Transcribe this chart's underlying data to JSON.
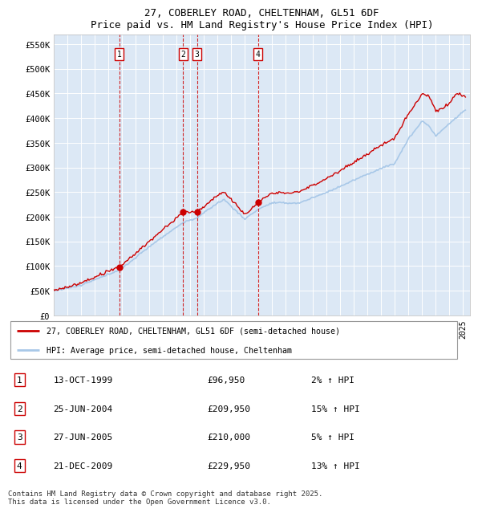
{
  "title_line1": "27, COBERLEY ROAD, CHELTENHAM, GL51 6DF",
  "title_line2": "Price paid vs. HM Land Registry's House Price Index (HPI)",
  "ylabel_ticks": [
    "£0",
    "£50K",
    "£100K",
    "£150K",
    "£200K",
    "£250K",
    "£300K",
    "£350K",
    "£400K",
    "£450K",
    "£500K",
    "£550K"
  ],
  "ytick_values": [
    0,
    50000,
    100000,
    150000,
    200000,
    250000,
    300000,
    350000,
    400000,
    450000,
    500000,
    550000
  ],
  "ylim": [
    0,
    570000
  ],
  "xlim_start": 1995.0,
  "xlim_end": 2025.5,
  "hpi_color": "#a8c8e8",
  "price_color": "#cc0000",
  "vline_color": "#cc0000",
  "plot_bg_color": "#dce8f5",
  "grid_color": "#ffffff",
  "sales": [
    {
      "date_dec": 1999.79,
      "price": 96950,
      "label": "1"
    },
    {
      "date_dec": 2004.48,
      "price": 209950,
      "label": "2"
    },
    {
      "date_dec": 2005.49,
      "price": 210000,
      "label": "3"
    },
    {
      "date_dec": 2009.97,
      "price": 229950,
      "label": "4"
    }
  ],
  "legend_line1": "27, COBERLEY ROAD, CHELTENHAM, GL51 6DF (semi-detached house)",
  "legend_line2": "HPI: Average price, semi-detached house, Cheltenham",
  "table_rows": [
    {
      "num": "1",
      "date": "13-OCT-1999",
      "price": "£96,950",
      "pct": "2% ↑ HPI"
    },
    {
      "num": "2",
      "date": "25-JUN-2004",
      "price": "£209,950",
      "pct": "15% ↑ HPI"
    },
    {
      "num": "3",
      "date": "27-JUN-2005",
      "price": "£210,000",
      "pct": "5% ↑ HPI"
    },
    {
      "num": "4",
      "date": "21-DEC-2009",
      "price": "£229,950",
      "pct": "13% ↑ HPI"
    }
  ],
  "footnote": "Contains HM Land Registry data © Crown copyright and database right 2025.\nThis data is licensed under the Open Government Licence v3.0."
}
